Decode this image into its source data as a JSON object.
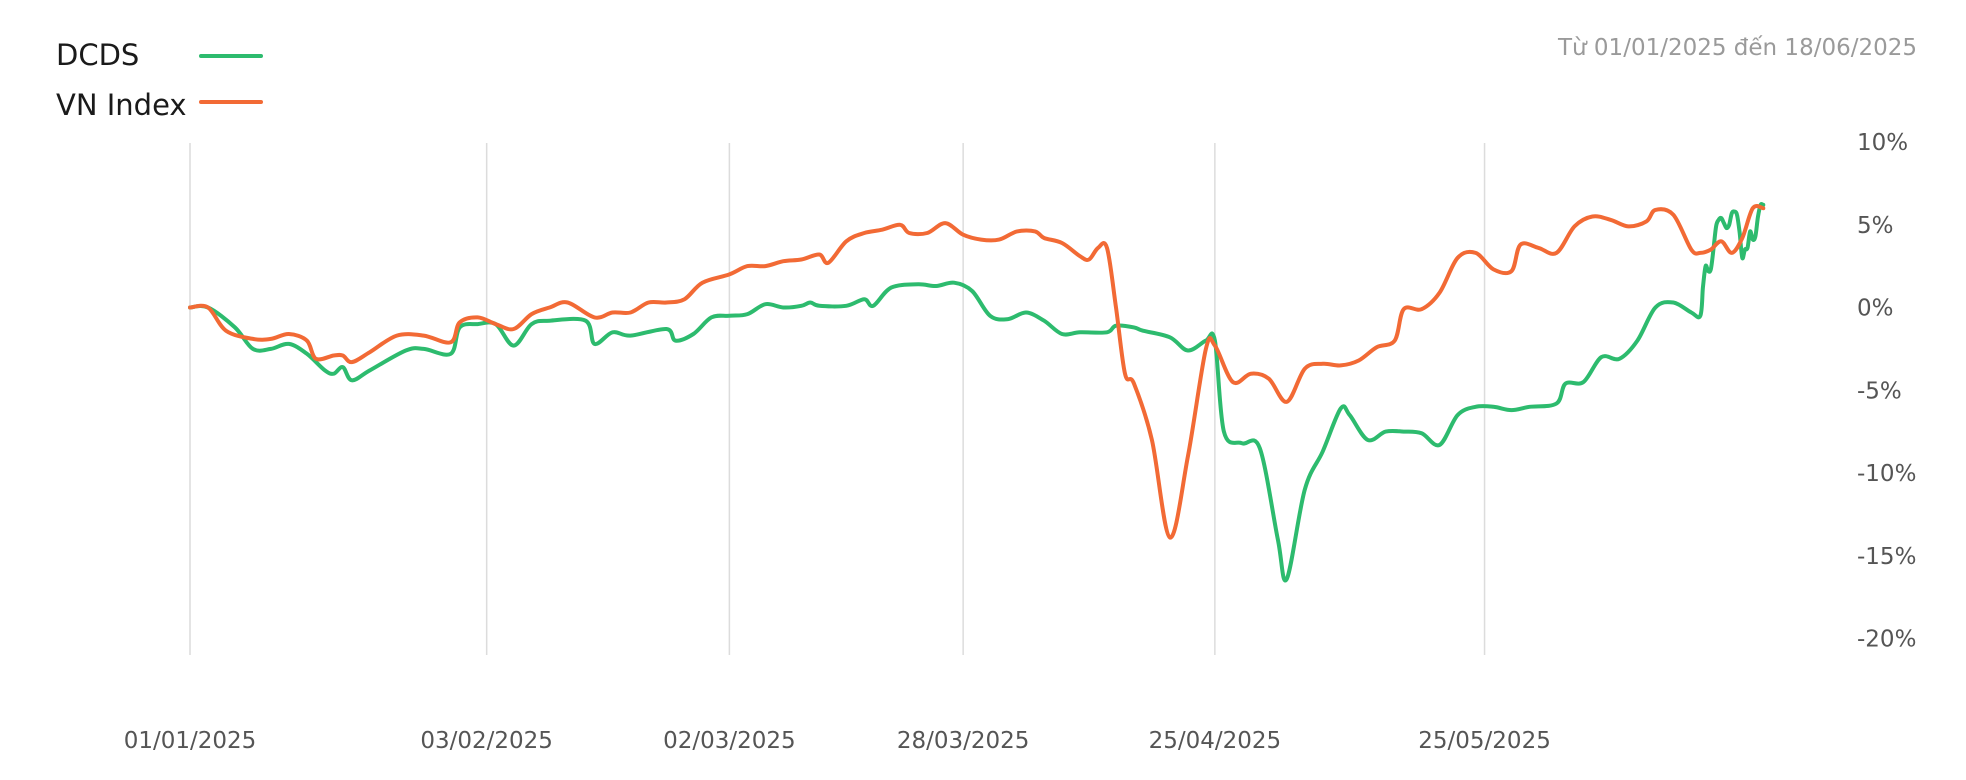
{
  "date_range": "Từ 01/01/2025 đến 18/06/2025",
  "colors": {
    "dcds": "#2dbb6e",
    "vnindex": "#f26a35"
  },
  "chart_data": {
    "type": "line",
    "title": "",
    "xlabel": "",
    "ylabel": "",
    "x_ticks": [
      "01/01/2025",
      "03/02/2025",
      "02/03/2025",
      "28/03/2025",
      "25/04/2025",
      "25/05/2025"
    ],
    "y_ticks": [
      "10%",
      "5%",
      "0%",
      "-5%",
      "-10%",
      "-15%",
      "-20%"
    ],
    "ylim": [
      -20,
      10
    ],
    "grid": "vertical",
    "legend": "top-left",
    "series": [
      {
        "name": "DCDS",
        "color": "#2dbb6e",
        "points": [
          [
            "01/01/2025",
            0
          ],
          [
            "03/01/2025",
            0
          ],
          [
            "06/01/2025",
            -1.2
          ],
          [
            "08/01/2025",
            -2.5
          ],
          [
            "10/01/2025",
            -2.5
          ],
          [
            "12/01/2025",
            -2.2
          ],
          [
            "14/01/2025",
            -2.8
          ],
          [
            "16/01/2025",
            -3.8
          ],
          [
            "17/01/2025",
            -4.0
          ],
          [
            "18/01/2025",
            -3.6
          ],
          [
            "19/01/2025",
            -4.4
          ],
          [
            "21/01/2025",
            -3.8
          ],
          [
            "25/01/2025",
            -2.6
          ],
          [
            "27/01/2025",
            -2.5
          ],
          [
            "30/01/2025",
            -2.8
          ],
          [
            "31/01/2025",
            -1.2
          ],
          [
            "02/02/2025",
            -1.0
          ],
          [
            "04/02/2025",
            -1.0
          ],
          [
            "06/02/2025",
            -2.3
          ],
          [
            "08/02/2025",
            -1.0
          ],
          [
            "10/02/2025",
            -0.8
          ],
          [
            "14/02/2025",
            -0.8
          ],
          [
            "15/02/2025",
            -2.2
          ],
          [
            "17/02/2025",
            -1.5
          ],
          [
            "19/02/2025",
            -1.7
          ],
          [
            "23/02/2025",
            -1.3
          ],
          [
            "24/02/2025",
            -2.0
          ],
          [
            "26/02/2025",
            -1.6
          ],
          [
            "28/02/2025",
            -0.6
          ],
          [
            "02/03/2025",
            -0.5
          ],
          [
            "04/03/2025",
            -0.4
          ],
          [
            "06/03/2025",
            0.2
          ],
          [
            "08/03/2025",
            0.0
          ],
          [
            "10/03/2025",
            0.1
          ],
          [
            "11/03/2025",
            0.3
          ],
          [
            "12/03/2025",
            0.1
          ],
          [
            "15/03/2025",
            0.1
          ],
          [
            "17/03/2025",
            0.5
          ],
          [
            "18/03/2025",
            0.1
          ],
          [
            "20/03/2025",
            1.2
          ],
          [
            "23/03/2025",
            1.4
          ],
          [
            "25/03/2025",
            1.3
          ],
          [
            "27/03/2025",
            1.5
          ],
          [
            "29/03/2025",
            1.0
          ],
          [
            "31/03/2025",
            -0.5
          ],
          [
            "02/04/2025",
            -0.7
          ],
          [
            "04/04/2025",
            -0.3
          ],
          [
            "06/04/2025",
            -0.8
          ],
          [
            "08/04/2025",
            -1.6
          ],
          [
            "10/04/2025",
            -1.5
          ],
          [
            "13/04/2025",
            -1.5
          ],
          [
            "14/04/2025",
            -1.1
          ],
          [
            "16/04/2025",
            -1.2
          ],
          [
            "17/04/2025",
            -1.4
          ],
          [
            "20/04/2025",
            -1.8
          ],
          [
            "22/04/2025",
            -2.6
          ],
          [
            "24/04/2025",
            -2.0
          ],
          [
            "25/04/2025",
            -2.0
          ],
          [
            "26/04/2025",
            -7.5
          ],
          [
            "28/04/2025",
            -8.2
          ],
          [
            "30/04/2025",
            -8.5
          ],
          [
            "02/05/2025",
            -14.0
          ],
          [
            "03/05/2025",
            -16.4
          ],
          [
            "05/05/2025",
            -11.0
          ],
          [
            "07/05/2025",
            -8.7
          ],
          [
            "09/05/2025",
            -6.1
          ],
          [
            "10/05/2025",
            -6.5
          ],
          [
            "12/05/2025",
            -8.0
          ],
          [
            "14/05/2025",
            -7.5
          ],
          [
            "16/05/2025",
            -7.5
          ],
          [
            "18/05/2025",
            -7.6
          ],
          [
            "20/05/2025",
            -8.3
          ],
          [
            "22/05/2025",
            -6.5
          ],
          [
            "24/05/2025",
            -6.0
          ],
          [
            "26/05/2025",
            -6.0
          ],
          [
            "28/05/2025",
            -6.2
          ],
          [
            "30/05/2025",
            -6.0
          ],
          [
            "02/06/2025",
            -5.8
          ],
          [
            "03/06/2025",
            -4.6
          ],
          [
            "05/06/2025",
            -4.5
          ],
          [
            "07/06/2025",
            -3.0
          ],
          [
            "09/06/2025",
            -3.1
          ],
          [
            "11/06/2025",
            -2.0
          ],
          [
            "13/06/2025",
            0.0
          ],
          [
            "15/06/2025",
            0.3
          ],
          [
            "17/06/2025",
            -0.3
          ],
          [
            "18/06/2025",
            -0.5
          ]
        ],
        "tail_values": [
          1.2,
          2.5,
          2.2,
          2.3,
          3.5,
          4.9,
          5.3,
          5.4,
          5.1,
          4.8,
          5.0,
          5.7,
          5.8,
          5.6,
          4.5,
          3.0,
          3.5,
          3.6,
          4.6,
          4.1,
          4.3,
          5.5,
          6.2,
          6.2
        ]
      },
      {
        "name": "VN Index",
        "color": "#f26a35",
        "points": [
          [
            "01/01/2025",
            0
          ],
          [
            "03/01/2025",
            0
          ],
          [
            "05/01/2025",
            -1.4
          ],
          [
            "08/01/2025",
            -1.9
          ],
          [
            "10/01/2025",
            -1.9
          ],
          [
            "12/01/2025",
            -1.6
          ],
          [
            "14/01/2025",
            -2.0
          ],
          [
            "15/01/2025",
            -3.1
          ],
          [
            "17/01/2025",
            -2.9
          ],
          [
            "18/01/2025",
            -2.9
          ],
          [
            "19/01/2025",
            -3.3
          ],
          [
            "21/01/2025",
            -2.7
          ],
          [
            "24/01/2025",
            -1.7
          ],
          [
            "27/01/2025",
            -1.7
          ],
          [
            "30/01/2025",
            -2.1
          ],
          [
            "31/01/2025",
            -0.9
          ],
          [
            "02/02/2025",
            -0.6
          ],
          [
            "04/02/2025",
            -1.0
          ],
          [
            "06/02/2025",
            -1.3
          ],
          [
            "08/02/2025",
            -0.4
          ],
          [
            "10/02/2025",
            0.0
          ],
          [
            "12/02/2025",
            0.3
          ],
          [
            "15/02/2025",
            -0.6
          ],
          [
            "17/02/2025",
            -0.3
          ],
          [
            "19/02/2025",
            -0.3
          ],
          [
            "21/02/2025",
            0.3
          ],
          [
            "23/02/2025",
            0.3
          ],
          [
            "25/02/2025",
            0.5
          ],
          [
            "27/02/2025",
            1.5
          ],
          [
            "02/03/2025",
            2.0
          ],
          [
            "04/03/2025",
            2.5
          ],
          [
            "06/03/2025",
            2.5
          ],
          [
            "08/03/2025",
            2.8
          ],
          [
            "10/03/2025",
            2.9
          ],
          [
            "12/03/2025",
            3.2
          ],
          [
            "13/03/2025",
            2.7
          ],
          [
            "15/03/2025",
            4.0
          ],
          [
            "17/03/2025",
            4.5
          ],
          [
            "19/03/2025",
            4.7
          ],
          [
            "21/03/2025",
            5.0
          ],
          [
            "22/03/2025",
            4.5
          ],
          [
            "24/03/2025",
            4.5
          ],
          [
            "26/03/2025",
            5.1
          ],
          [
            "28/03/2025",
            4.4
          ],
          [
            "30/03/2025",
            4.1
          ],
          [
            "01/04/2025",
            4.1
          ],
          [
            "03/04/2025",
            4.6
          ],
          [
            "05/04/2025",
            4.6
          ],
          [
            "06/04/2025",
            4.2
          ],
          [
            "08/04/2025",
            3.9
          ],
          [
            "10/04/2025",
            3.1
          ],
          [
            "11/04/2025",
            2.9
          ],
          [
            "12/04/2025",
            3.6
          ],
          [
            "13/04/2025",
            3.6
          ],
          [
            "14/04/2025",
            0.0
          ],
          [
            "15/04/2025",
            -4.0
          ],
          [
            "16/04/2025",
            -4.6
          ],
          [
            "18/04/2025",
            -8.0
          ],
          [
            "20/04/2025",
            -13.9
          ],
          [
            "22/04/2025",
            -9.0
          ],
          [
            "24/04/2025",
            -2.5
          ],
          [
            "25/04/2025",
            -2.3
          ],
          [
            "27/04/2025",
            -4.5
          ],
          [
            "29/04/2025",
            -4.0
          ],
          [
            "01/05/2025",
            -4.3
          ],
          [
            "03/05/2025",
            -5.7
          ],
          [
            "05/05/2025",
            -3.7
          ],
          [
            "07/05/2025",
            -3.4
          ],
          [
            "09/05/2025",
            -3.5
          ],
          [
            "11/05/2025",
            -3.2
          ],
          [
            "13/05/2025",
            -2.4
          ],
          [
            "15/05/2025",
            -2.0
          ],
          [
            "16/05/2025",
            -0.1
          ],
          [
            "18/05/2025",
            -0.1
          ],
          [
            "20/05/2025",
            0.9
          ],
          [
            "22/05/2025",
            3.0
          ],
          [
            "24/05/2025",
            3.3
          ],
          [
            "26/05/2025",
            2.3
          ],
          [
            "28/05/2025",
            2.2
          ],
          [
            "29/05/2025",
            3.8
          ],
          [
            "31/05/2025",
            3.6
          ],
          [
            "02/06/2025",
            3.3
          ],
          [
            "04/06/2025",
            4.9
          ],
          [
            "06/06/2025",
            5.5
          ],
          [
            "08/06/2025",
            5.3
          ],
          [
            "10/06/2025",
            4.9
          ],
          [
            "12/06/2025",
            5.2
          ],
          [
            "13/06/2025",
            5.9
          ],
          [
            "15/06/2025",
            5.6
          ],
          [
            "17/06/2025",
            3.5
          ],
          [
            "18/06/2025",
            3.3
          ]
        ],
        "tail_values": [
          3.5,
          4.0,
          3.3,
          4.2,
          6.0,
          6.0
        ]
      }
    ]
  }
}
